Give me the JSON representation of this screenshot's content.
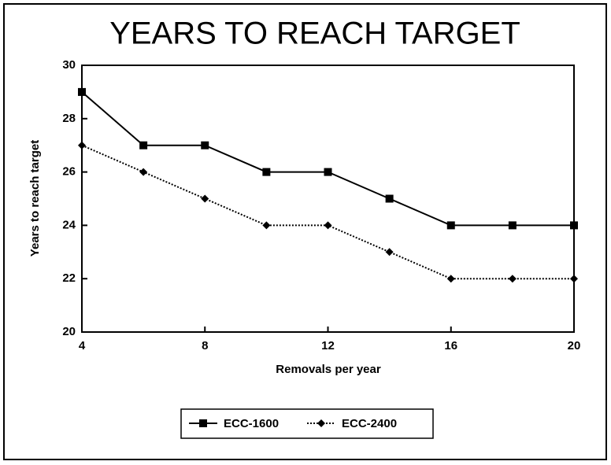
{
  "chart_data": {
    "type": "line",
    "title": "YEARS TO REACH TARGET",
    "x_label": "Removals per year",
    "y_label": "Years to reach target",
    "x": [
      4,
      6,
      8,
      10,
      12,
      14,
      16,
      18,
      20
    ],
    "series": [
      {
        "name": "ECC-1600",
        "color": "#000000",
        "marker": "square",
        "linestyle": "solid",
        "values": [
          29,
          27,
          27,
          26,
          26,
          25,
          24,
          24,
          24
        ]
      },
      {
        "name": "ECC-2400",
        "color": "#000000",
        "marker": "diamond",
        "linestyle": "dotted",
        "values": [
          27,
          26,
          25,
          24,
          24,
          23,
          22,
          22,
          22
        ]
      }
    ],
    "xlim": [
      4,
      20
    ],
    "xticks": [
      4,
      8,
      12,
      16,
      20
    ],
    "ylim": [
      20,
      30
    ],
    "yticks": [
      20,
      22,
      24,
      26,
      28,
      30
    ],
    "grid": false,
    "legend": "bottom"
  }
}
